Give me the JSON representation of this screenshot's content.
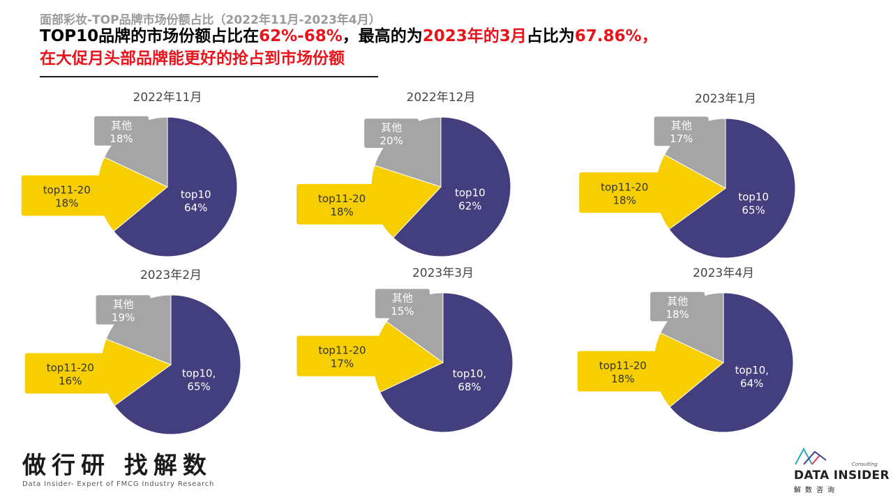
{
  "header": {
    "breadcrumb": "面部彩妆-TOP品牌市场份额占比（2022年11月-2023年4月）",
    "headline_line1": [
      {
        "text": "TOP10品牌的市场份额占比在",
        "highlight": false
      },
      {
        "text": "62%-68%",
        "highlight": true
      },
      {
        "text": "，最高的为",
        "highlight": false
      },
      {
        "text": "2023年的3月",
        "highlight": true
      },
      {
        "text": "占比为",
        "highlight": false
      },
      {
        "text": "67.86%，",
        "highlight": true
      }
    ],
    "headline_line2": "在大促月头部品牌能更好的抢占到市场份额"
  },
  "colors": {
    "top10": "#433f7e",
    "top11_20": "#f7cf00",
    "other": "#a5a5a5",
    "highlight": "#e8141b"
  },
  "chart_data": [
    {
      "type": "pie",
      "title": "2022年11月",
      "labels": [
        "top10",
        "top11-20",
        "其他"
      ],
      "values": [
        64,
        18,
        18
      ],
      "value_labels": [
        "64%",
        "18%",
        "18%"
      ]
    },
    {
      "type": "pie",
      "title": "2022年12月",
      "labels": [
        "top10",
        "top11-20",
        "其他"
      ],
      "values": [
        62,
        18,
        20
      ],
      "value_labels": [
        "62%",
        "18%",
        "20%"
      ]
    },
    {
      "type": "pie",
      "title": "2023年1月",
      "labels": [
        "top10",
        "top11-20",
        "其他"
      ],
      "values": [
        65,
        18,
        17
      ],
      "value_labels": [
        "65%",
        "18%",
        "17%"
      ]
    },
    {
      "type": "pie",
      "title": "2023年2月",
      "labels": [
        "top10,",
        "top11-20",
        "其他"
      ],
      "values": [
        65,
        16,
        19
      ],
      "value_labels": [
        "65%",
        "16%",
        "19%"
      ]
    },
    {
      "type": "pie",
      "title": "2023年3月",
      "labels": [
        "top10,",
        "top11-20",
        "其他"
      ],
      "values": [
        68,
        17,
        15
      ],
      "value_labels": [
        "68%",
        "17%",
        "15%"
      ]
    },
    {
      "type": "pie",
      "title": "2023年4月",
      "labels": [
        "top10,",
        "top11-20",
        "其他"
      ],
      "values": [
        64,
        18,
        18
      ],
      "value_labels": [
        "64%",
        "18%",
        "18%"
      ]
    }
  ],
  "footer": {
    "slogan": "做行研 找解数",
    "slogan_sub": "Data Insider- Expert of FMCG Industry Research",
    "logo_consulting": "Consulting",
    "logo_name": "DATA INSIDER",
    "logo_cn": "解数咨询"
  }
}
